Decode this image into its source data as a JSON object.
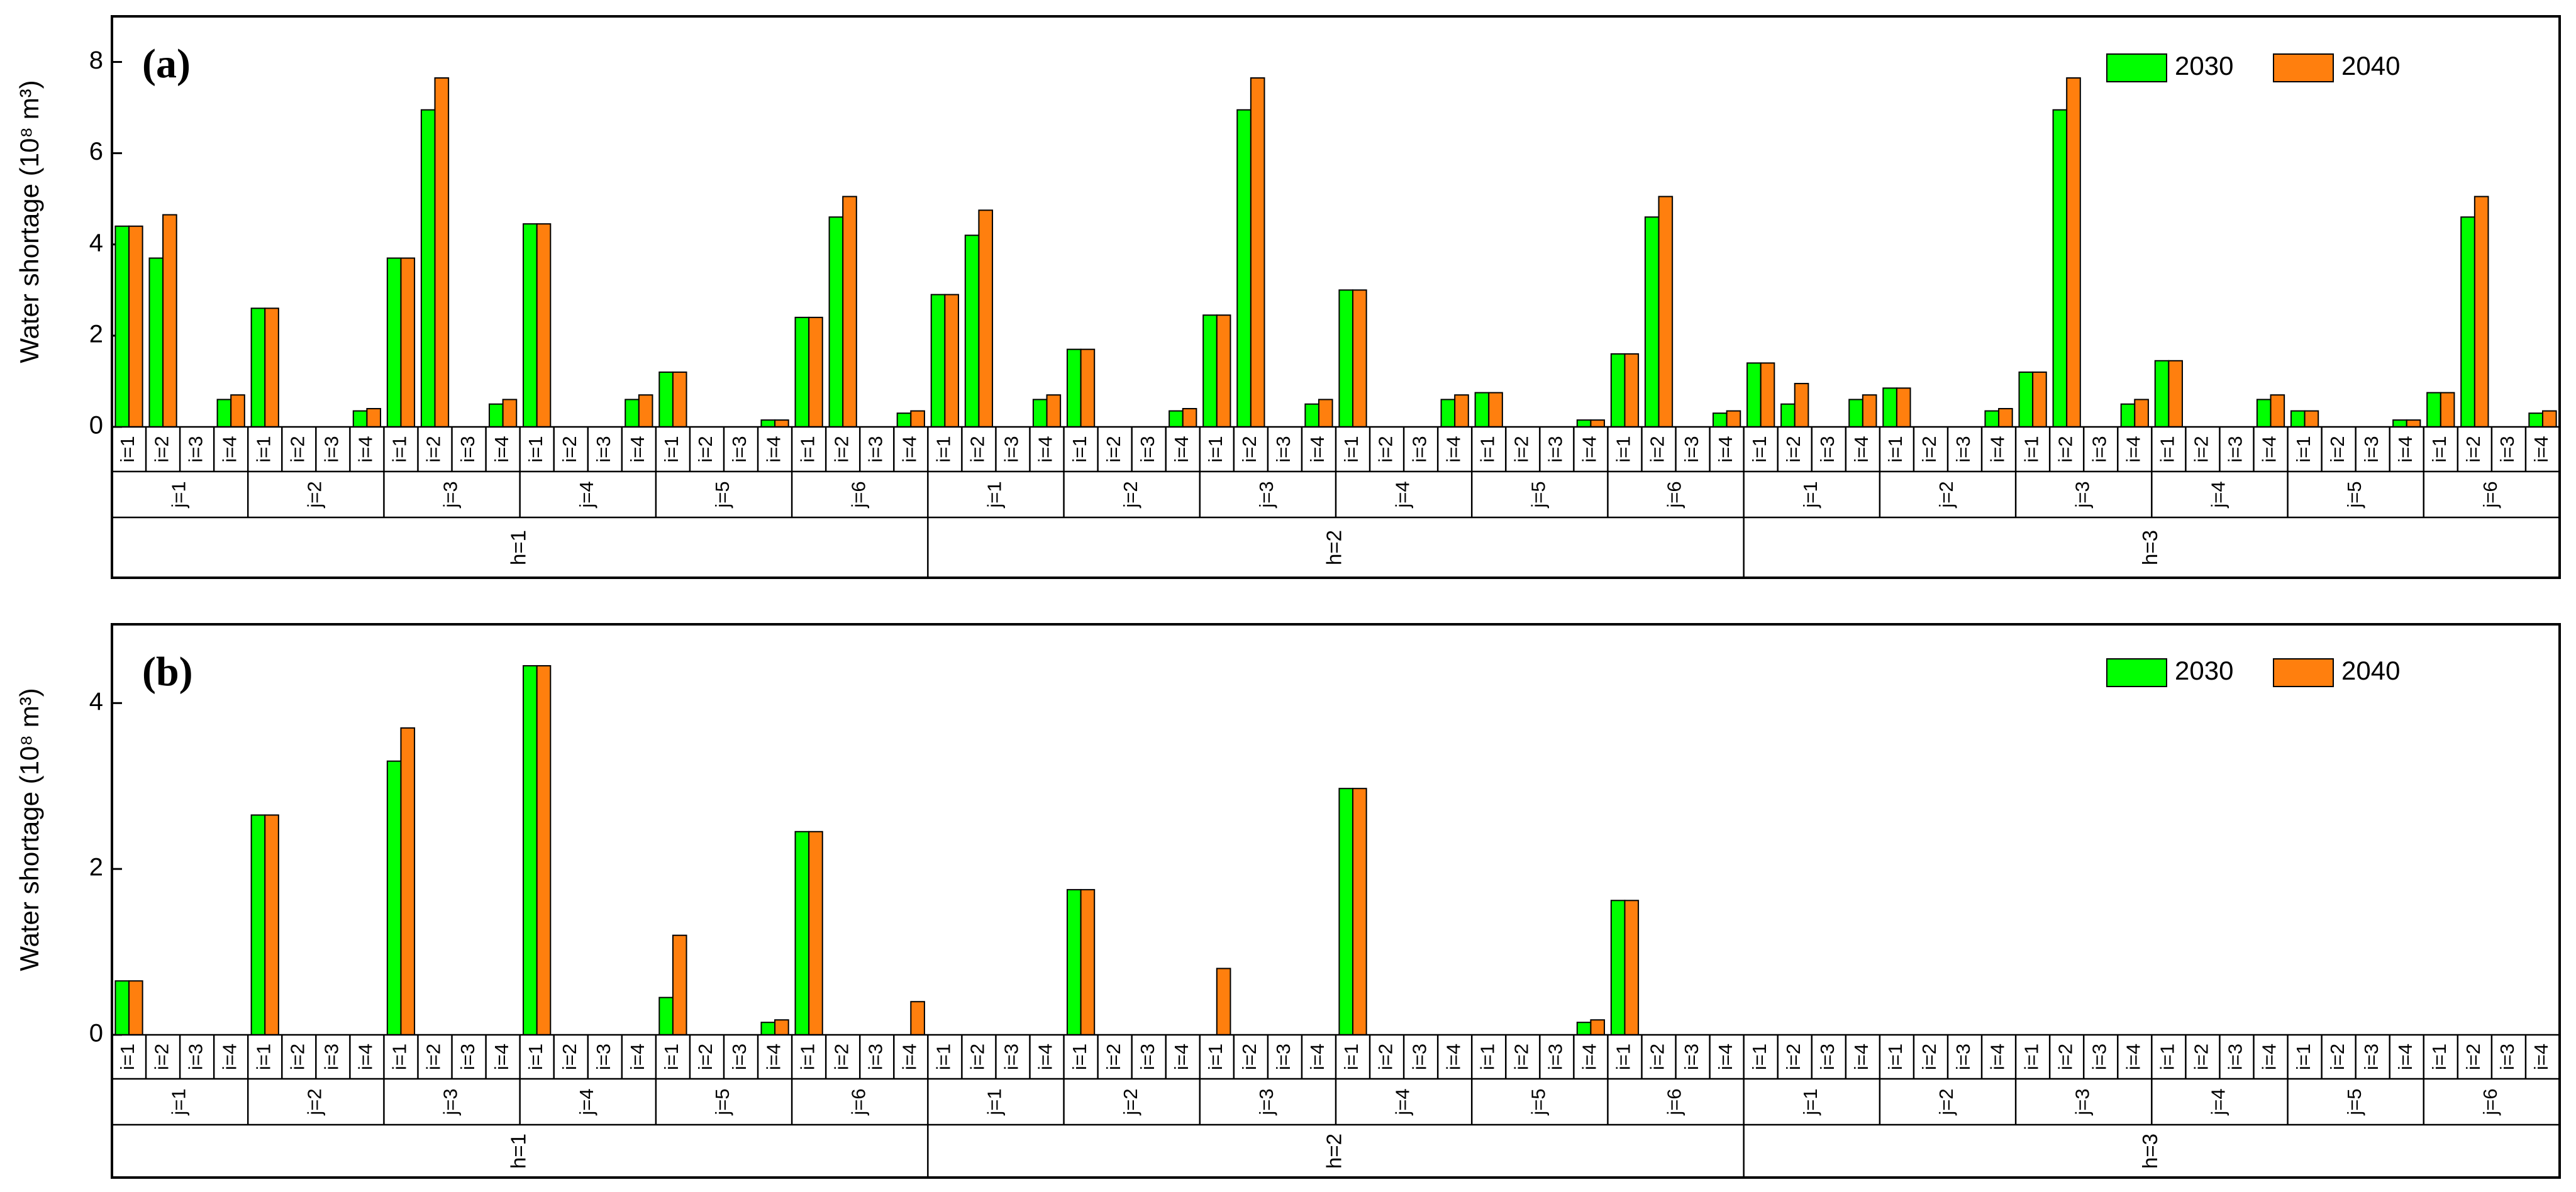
{
  "chart_data": [
    {
      "type": "bar",
      "panel_label": "(a)",
      "y_label": "Water shortage (10⁸ m³)",
      "categories": [
        "i=1",
        "i=2",
        "i=3",
        "i=4",
        "i=1",
        "i=2",
        "i=3",
        "i=4",
        "i=1",
        "i=2",
        "i=3",
        "i=4",
        "i=1",
        "i=2",
        "i=3",
        "i=4",
        "i=1",
        "i=2",
        "i=3",
        "i=4",
        "i=1",
        "i=2",
        "i=3",
        "i=4",
        "i=1",
        "i=2",
        "i=3",
        "i=4",
        "i=1",
        "i=2",
        "i=3",
        "i=4",
        "i=1",
        "i=2",
        "i=3",
        "i=4",
        "i=1",
        "i=2",
        "i=3",
        "i=4",
        "i=1",
        "i=2",
        "i=3",
        "i=4",
        "i=1",
        "i=2",
        "i=3",
        "i=4",
        "i=1",
        "i=2",
        "i=3",
        "i=4",
        "i=1",
        "i=2",
        "i=3",
        "i=4",
        "i=1",
        "i=2",
        "i=3",
        "i=4",
        "i=1",
        "i=2",
        "i=3",
        "i=4",
        "i=1",
        "i=2",
        "i=3",
        "i=4",
        "i=1",
        "i=2",
        "i=3",
        "i=4"
      ],
      "j_groups": [
        "j=1",
        "j=2",
        "j=3",
        "j=4",
        "j=5",
        "j=6",
        "j=1",
        "j=2",
        "j=3",
        "j=4",
        "j=5",
        "j=6",
        "j=1",
        "j=2",
        "j=3",
        "j=4",
        "j=5",
        "j=6"
      ],
      "h_groups": [
        "h=1",
        "h=2",
        "h=3"
      ],
      "series": [
        {
          "name": "2030",
          "color": "#00ff00",
          "values": [
            4.4,
            3.7,
            0,
            0.6,
            2.6,
            0,
            0,
            0.35,
            3.7,
            6.95,
            0,
            0.5,
            4.45,
            0,
            0,
            0.6,
            1.2,
            0,
            0,
            0.15,
            2.4,
            4.6,
            0,
            0.3,
            2.9,
            4.2,
            0,
            0.6,
            1.7,
            0,
            0,
            0.35,
            2.45,
            6.95,
            0,
            0.5,
            3,
            0,
            0,
            0.6,
            0.75,
            0,
            0,
            0.15,
            1.6,
            4.6,
            0,
            0.3,
            1.4,
            0.5,
            0,
            0.6,
            0.85,
            0,
            0,
            0.35,
            1.2,
            6.95,
            0,
            0.5,
            1.45,
            0,
            0,
            0.6,
            0.35,
            0,
            0,
            0.15,
            0.75,
            4.6,
            0,
            0.3
          ]
        },
        {
          "name": "2040",
          "color": "#ff7f0e",
          "values": [
            4.4,
            4.65,
            0,
            0.7,
            2.6,
            0,
            0,
            0.4,
            3.7,
            7.65,
            0,
            0.6,
            4.45,
            0,
            0,
            0.7,
            1.2,
            0,
            0,
            0.15,
            2.4,
            5.05,
            0,
            0.35,
            2.9,
            4.75,
            0,
            0.7,
            1.7,
            0,
            0,
            0.4,
            2.45,
            7.65,
            0,
            0.6,
            3,
            0,
            0,
            0.7,
            0.75,
            0,
            0,
            0.15,
            1.6,
            5.05,
            0,
            0.35,
            1.4,
            0.95,
            0,
            0.7,
            0.85,
            0,
            0,
            0.4,
            1.2,
            7.65,
            0,
            0.6,
            1.45,
            0,
            0,
            0.7,
            0.35,
            0,
            0,
            0.15,
            0.75,
            5.05,
            0,
            0.35
          ]
        }
      ],
      "ylim": [
        0,
        9
      ],
      "yticks": [
        0,
        2,
        4,
        6,
        8
      ],
      "legend": "upper right"
    },
    {
      "type": "bar",
      "panel_label": "(b)",
      "y_label": "Water shortage (10⁸ m³)",
      "categories": [
        "i=1",
        "i=2",
        "i=3",
        "i=4",
        "i=1",
        "i=2",
        "i=3",
        "i=4",
        "i=1",
        "i=2",
        "i=3",
        "i=4",
        "i=1",
        "i=2",
        "i=3",
        "i=4",
        "i=1",
        "i=2",
        "i=3",
        "i=4",
        "i=1",
        "i=2",
        "i=3",
        "i=4",
        "i=1",
        "i=2",
        "i=3",
        "i=4",
        "i=1",
        "i=2",
        "i=3",
        "i=4",
        "i=1",
        "i=2",
        "i=3",
        "i=4",
        "i=1",
        "i=2",
        "i=3",
        "i=4",
        "i=1",
        "i=2",
        "i=3",
        "i=4",
        "i=1",
        "i=2",
        "i=3",
        "i=4",
        "i=1",
        "i=2",
        "i=3",
        "i=4",
        "i=1",
        "i=2",
        "i=3",
        "i=4",
        "i=1",
        "i=2",
        "i=3",
        "i=4",
        "i=1",
        "i=2",
        "i=3",
        "i=4",
        "i=1",
        "i=2",
        "i=3",
        "i=4",
        "i=1",
        "i=2",
        "i=3",
        "i=4"
      ],
      "j_groups": [
        "j=1",
        "j=2",
        "j=3",
        "j=4",
        "j=5",
        "j=6",
        "j=1",
        "j=2",
        "j=3",
        "j=4",
        "j=5",
        "j=6",
        "j=1",
        "j=2",
        "j=3",
        "j=4",
        "j=5",
        "j=6"
      ],
      "h_groups": [
        "h=1",
        "h=2",
        "h=3"
      ],
      "series": [
        {
          "name": "2030",
          "color": "#00ff00",
          "values": [
            0.65,
            0,
            0,
            0,
            2.65,
            0,
            0,
            0,
            3.3,
            0,
            0,
            0,
            4.45,
            0,
            0,
            0,
            0.45,
            0,
            0,
            0.15,
            2.45,
            0,
            0,
            0,
            0,
            0,
            0,
            0,
            1.75,
            0,
            0,
            0,
            0,
            0,
            0,
            0,
            2.97,
            0,
            0,
            0,
            0,
            0,
            0,
            0.15,
            1.62,
            0,
            0,
            0,
            0,
            0,
            0,
            0,
            0,
            0,
            0,
            0,
            0,
            0,
            0,
            0,
            0,
            0,
            0,
            0,
            0,
            0,
            0,
            0,
            0,
            0,
            0,
            0
          ]
        },
        {
          "name": "2040",
          "color": "#ff7f0e",
          "values": [
            0.65,
            0,
            0,
            0,
            2.65,
            0,
            0,
            0,
            3.7,
            0,
            0,
            0,
            4.45,
            0,
            0,
            0,
            1.2,
            0,
            0,
            0.18,
            2.45,
            0,
            0,
            0.4,
            0,
            0,
            0,
            0,
            1.75,
            0,
            0,
            0,
            0.8,
            0,
            0,
            0,
            2.97,
            0,
            0,
            0,
            0,
            0,
            0,
            0.18,
            1.62,
            0,
            0,
            0,
            0,
            0,
            0,
            0,
            0,
            0,
            0,
            0,
            0,
            0,
            0,
            0,
            0,
            0,
            0,
            0,
            0,
            0,
            0,
            0,
            0,
            0,
            0,
            0
          ]
        }
      ],
      "ylim": [
        0,
        4.95
      ],
      "yticks": [
        0,
        2,
        4
      ],
      "legend": "upper right"
    }
  ]
}
